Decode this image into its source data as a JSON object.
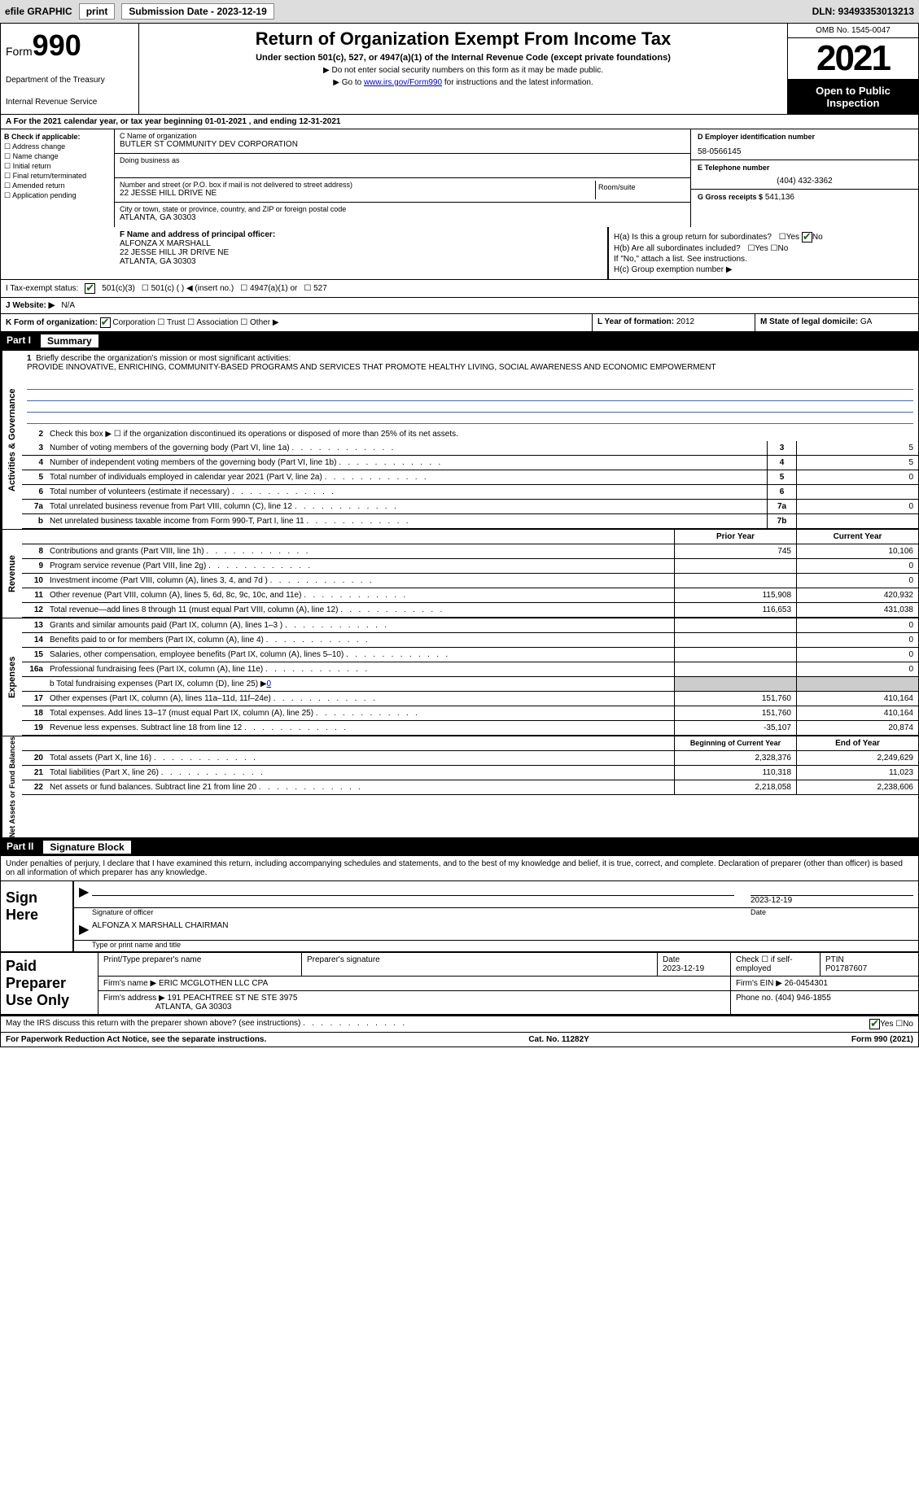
{
  "topbar": {
    "efile_label": "efile GRAPHIC",
    "print_label": "print",
    "submission_label": "Submission Date - 2023-12-19",
    "dln_label": "DLN: 93493353013213"
  },
  "header": {
    "form_word": "Form",
    "form_num": "990",
    "dept": "Department of the Treasury",
    "irs": "Internal Revenue Service",
    "title": "Return of Organization Exempt From Income Tax",
    "sub": "Under section 501(c), 527, or 4947(a)(1) of the Internal Revenue Code (except private foundations)",
    "note1": "▶ Do not enter social security numbers on this form as it may be made public.",
    "note2_pre": "▶ Go to ",
    "note2_link": "www.irs.gov/Form990",
    "note2_post": " for instructions and the latest information.",
    "omb": "OMB No. 1545-0047",
    "year": "2021",
    "open": "Open to Public Inspection"
  },
  "row_a": {
    "text": "A For the 2021 calendar year, or tax year beginning 01-01-2021   , and ending 12-31-2021"
  },
  "col_b": {
    "hdr": "B Check if applicable:",
    "opts": [
      "Address change",
      "Name change",
      "Initial return",
      "Final return/terminated",
      "Amended return",
      "Application pending"
    ]
  },
  "col_c": {
    "name_lbl": "C Name of organization",
    "name": "BUTLER ST COMMUNITY DEV CORPORATION",
    "dba_lbl": "Doing business as",
    "addr_lbl": "Number and street (or P.O. box if mail is not delivered to street address)",
    "room_lbl": "Room/suite",
    "addr": "22 JESSE HILL DRIVE NE",
    "city_lbl": "City or town, state or province, country, and ZIP or foreign postal code",
    "city": "ATLANTA, GA  30303"
  },
  "col_d": {
    "d_lbl": "D Employer identification number",
    "d_val": "58-0566145",
    "e_lbl": "E Telephone number",
    "e_val": "(404) 432-3362",
    "g_lbl": "G Gross receipts $",
    "g_val": "541,136"
  },
  "fgh": {
    "f_lbl": "F Name and address of principal officer:",
    "f_name": "ALFONZA X MARSHALL",
    "f_addr1": "22 JESSE HILL JR DRIVE NE",
    "f_addr2": "ATLANTA, GA  30303",
    "ha_lbl": "H(a)  Is this a group return for subordinates?",
    "hb_lbl": "H(b)  Are all subordinates included?",
    "h_note": "If \"No,\" attach a list. See instructions.",
    "hc_lbl": "H(c)  Group exemption number ▶",
    "yes": "Yes",
    "no": "No"
  },
  "row_i": {
    "lbl": "I    Tax-exempt status:",
    "o1": "501(c)(3)",
    "o2": "501(c) (  ) ◀ (insert no.)",
    "o3": "4947(a)(1) or",
    "o4": "527"
  },
  "row_j": {
    "lbl": "J   Website: ▶",
    "val": "N/A"
  },
  "row_k": {
    "k_lbl": "K Form of organization:",
    "k_opts": [
      "Corporation",
      "Trust",
      "Association",
      "Other ▶"
    ],
    "l_lbl": "L Year of formation:",
    "l_val": "2012",
    "m_lbl": "M State of legal domicile:",
    "m_val": "GA"
  },
  "part1": {
    "no": "Part I",
    "title": "Summary"
  },
  "sidebars": {
    "ag": "Activities & Governance",
    "rev": "Revenue",
    "exp": "Expenses",
    "na": "Net Assets or Fund Balances"
  },
  "summary": {
    "l1_lbl": "Briefly describe the organization's mission or most significant activities:",
    "l1_val": "PROVIDE INNOVATIVE, ENRICHING, COMMUNITY-BASED PROGRAMS AND SERVICES THAT PROMOTE HEALTHY LIVING, SOCIAL AWARENESS AND ECONOMIC EMPOWERMENT",
    "l2": "Check this box ▶ ☐ if the organization discontinued its operations or disposed of more than 25% of its net assets.",
    "lines": [
      {
        "n": "3",
        "t": "Number of voting members of the governing body (Part VI, line 1a)",
        "bn": "3",
        "v": "5"
      },
      {
        "n": "4",
        "t": "Number of independent voting members of the governing body (Part VI, line 1b)",
        "bn": "4",
        "v": "5"
      },
      {
        "n": "5",
        "t": "Total number of individuals employed in calendar year 2021 (Part V, line 2a)",
        "bn": "5",
        "v": "0"
      },
      {
        "n": "6",
        "t": "Total number of volunteers (estimate if necessary)",
        "bn": "6",
        "v": ""
      },
      {
        "n": "7a",
        "t": "Total unrelated business revenue from Part VIII, column (C), line 12",
        "bn": "7a",
        "v": "0"
      },
      {
        "n": "b",
        "t": "Net unrelated business taxable income from Form 990-T, Part I, line 11",
        "bn": "7b",
        "v": ""
      }
    ],
    "col_py": "Prior Year",
    "col_cy": "Current Year",
    "rev_lines": [
      {
        "n": "8",
        "t": "Contributions and grants (Part VIII, line 1h)",
        "py": "745",
        "cy": "10,106"
      },
      {
        "n": "9",
        "t": "Program service revenue (Part VIII, line 2g)",
        "py": "",
        "cy": "0"
      },
      {
        "n": "10",
        "t": "Investment income (Part VIII, column (A), lines 3, 4, and 7d )",
        "py": "",
        "cy": "0"
      },
      {
        "n": "11",
        "t": "Other revenue (Part VIII, column (A), lines 5, 6d, 8c, 9c, 10c, and 11e)",
        "py": "115,908",
        "cy": "420,932"
      },
      {
        "n": "12",
        "t": "Total revenue—add lines 8 through 11 (must equal Part VIII, column (A), line 12)",
        "py": "116,653",
        "cy": "431,038"
      }
    ],
    "exp_lines": [
      {
        "n": "13",
        "t": "Grants and similar amounts paid (Part IX, column (A), lines 1–3 )",
        "py": "",
        "cy": "0"
      },
      {
        "n": "14",
        "t": "Benefits paid to or for members (Part IX, column (A), line 4)",
        "py": "",
        "cy": "0"
      },
      {
        "n": "15",
        "t": "Salaries, other compensation, employee benefits (Part IX, column (A), lines 5–10)",
        "py": "",
        "cy": "0"
      },
      {
        "n": "16a",
        "t": "Professional fundraising fees (Part IX, column (A), line 11e)",
        "py": "",
        "cy": "0"
      }
    ],
    "l16b_pre": "b   Total fundraising expenses (Part IX, column (D), line 25) ▶",
    "l16b_val": "0",
    "exp_lines2": [
      {
        "n": "17",
        "t": "Other expenses (Part IX, column (A), lines 11a–11d, 11f–24e)",
        "py": "151,760",
        "cy": "410,164"
      },
      {
        "n": "18",
        "t": "Total expenses. Add lines 13–17 (must equal Part IX, column (A), line 25)",
        "py": "151,760",
        "cy": "410,164"
      },
      {
        "n": "19",
        "t": "Revenue less expenses. Subtract line 18 from line 12",
        "py": "-35,107",
        "cy": "20,874"
      }
    ],
    "col_bcy": "Beginning of Current Year",
    "col_eoy": "End of Year",
    "na_lines": [
      {
        "n": "20",
        "t": "Total assets (Part X, line 16)",
        "py": "2,328,376",
        "cy": "2,249,629"
      },
      {
        "n": "21",
        "t": "Total liabilities (Part X, line 26)",
        "py": "110,318",
        "cy": "11,023"
      },
      {
        "n": "22",
        "t": "Net assets or fund balances. Subtract line 21 from line 20",
        "py": "2,218,058",
        "cy": "2,238,606"
      }
    ]
  },
  "part2": {
    "no": "Part II",
    "title": "Signature Block"
  },
  "sig": {
    "penalty": "Under penalties of perjury, I declare that I have examined this return, including accompanying schedules and statements, and to the best of my knowledge and belief, it is true, correct, and complete. Declaration of preparer (other than officer) is based on all information of which preparer has any knowledge.",
    "sign_here": "Sign Here",
    "sig_officer": "Signature of officer",
    "date_lbl": "Date",
    "date_val": "2023-12-19",
    "name_title": "ALFONZA X MARSHALL  CHAIRMAN",
    "type_name": "Type or print name and title",
    "paid": "Paid Preparer Use Only",
    "pt_name_lbl": "Print/Type preparer's name",
    "pt_sig_lbl": "Preparer's signature",
    "pt_date_lbl": "Date",
    "pt_date": "2023-12-19",
    "pt_check_lbl": "Check ☐ if self-employed",
    "ptin_lbl": "PTIN",
    "ptin": "P01787607",
    "firm_name_lbl": "Firm's name    ▶",
    "firm_name": "ERIC MCGLOTHEN LLC CPA",
    "firm_ein_lbl": "Firm's EIN ▶",
    "firm_ein": "26-0454301",
    "firm_addr_lbl": "Firm's address ▶",
    "firm_addr": "191 PEACHTREE ST NE STE 3975",
    "firm_city": "ATLANTA, GA  30303",
    "phone_lbl": "Phone no.",
    "phone": "(404) 946-1855"
  },
  "footer": {
    "discuss": "May the IRS discuss this return with the preparer shown above? (see instructions)",
    "yes": "Yes",
    "no": "No",
    "pra": "For Paperwork Reduction Act Notice, see the separate instructions.",
    "cat": "Cat. No. 11282Y",
    "form": "Form 990 (2021)"
  }
}
